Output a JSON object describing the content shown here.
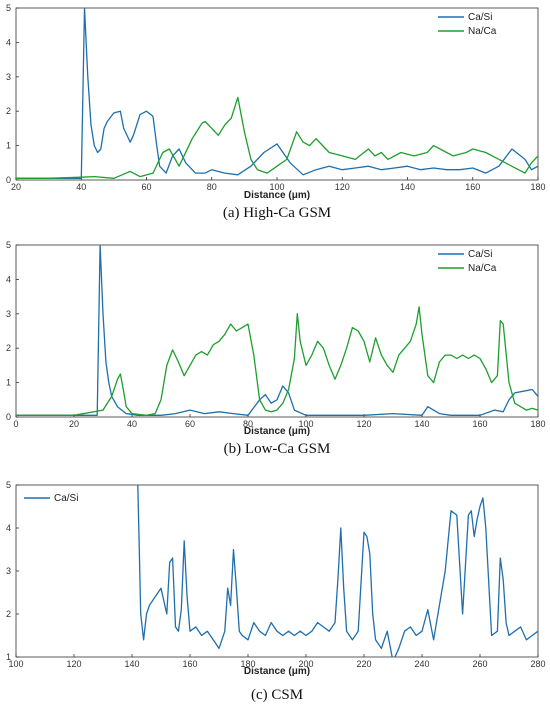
{
  "colors": {
    "ca_si": "#1f6fad",
    "na_ca": "#1e9e2e"
  },
  "chart_data": [
    {
      "type": "line",
      "caption": "(a) High-Ca GSM",
      "xlabel": "Distance (μm)",
      "ylabel": "",
      "xlim": [
        20,
        180
      ],
      "ylim": [
        0,
        5
      ],
      "xticks": [
        20,
        40,
        60,
        80,
        100,
        120,
        140,
        160,
        180
      ],
      "yticks": [
        0,
        1,
        2,
        3,
        4,
        5
      ],
      "legend_position": "top-right",
      "series": [
        {
          "name": "Ca/Si",
          "color": "#1f6fad",
          "x": [
            20,
            30,
            40,
            41,
            42,
            43,
            44,
            45,
            46,
            47,
            48,
            50,
            52,
            53,
            55,
            56,
            58,
            60,
            62,
            63,
            64,
            66,
            68,
            70,
            72,
            75,
            78,
            80,
            84,
            88,
            92,
            96,
            100,
            104,
            108,
            112,
            116,
            120,
            124,
            128,
            132,
            136,
            140,
            144,
            148,
            152,
            156,
            160,
            164,
            168,
            172,
            176,
            178,
            180
          ],
          "y": [
            0.05,
            0.05,
            0.05,
            5.0,
            3.0,
            1.6,
            1.0,
            0.8,
            0.9,
            1.5,
            1.7,
            1.95,
            2.0,
            1.5,
            1.1,
            1.3,
            1.9,
            2.0,
            1.85,
            1.1,
            0.4,
            0.2,
            0.7,
            0.9,
            0.5,
            0.2,
            0.2,
            0.3,
            0.2,
            0.15,
            0.4,
            0.8,
            1.05,
            0.5,
            0.15,
            0.3,
            0.4,
            0.3,
            0.35,
            0.4,
            0.3,
            0.35,
            0.4,
            0.3,
            0.35,
            0.3,
            0.3,
            0.35,
            0.2,
            0.4,
            0.9,
            0.6,
            0.3,
            0.4
          ]
        },
        {
          "name": "Na/Ca",
          "color": "#1e9e2e",
          "x": [
            20,
            30,
            40,
            44,
            50,
            55,
            58,
            62,
            65,
            67,
            70,
            74,
            77,
            78,
            80,
            82,
            84,
            86,
            88,
            90,
            92,
            94,
            97,
            100,
            103,
            106,
            108,
            110,
            112,
            116,
            120,
            124,
            128,
            130,
            132,
            134,
            138,
            142,
            146,
            148,
            150,
            154,
            158,
            160,
            164,
            166,
            170,
            174,
            176,
            178,
            180
          ],
          "y": [
            0.05,
            0.05,
            0.08,
            0.1,
            0.05,
            0.25,
            0.1,
            0.2,
            0.8,
            0.9,
            0.4,
            1.2,
            1.65,
            1.7,
            1.5,
            1.3,
            1.6,
            1.8,
            2.4,
            1.4,
            0.6,
            0.3,
            0.2,
            0.4,
            0.6,
            1.4,
            1.1,
            1.0,
            1.2,
            0.8,
            0.7,
            0.6,
            0.9,
            0.7,
            0.8,
            0.6,
            0.8,
            0.7,
            0.8,
            1.0,
            0.9,
            0.7,
            0.8,
            0.9,
            0.8,
            0.7,
            0.5,
            0.3,
            0.2,
            0.5,
            0.7
          ]
        }
      ]
    },
    {
      "type": "line",
      "caption": "(b) Low-Ca GSM",
      "xlabel": "Distance (μm)",
      "ylabel": "",
      "xlim": [
        0,
        180
      ],
      "ylim": [
        0,
        5
      ],
      "xticks": [
        0,
        20,
        40,
        60,
        80,
        100,
        120,
        140,
        160,
        180
      ],
      "yticks": [
        0,
        1,
        2,
        3,
        4,
        5
      ],
      "legend_position": "top-right",
      "series": [
        {
          "name": "Ca/Si",
          "color": "#1f6fad",
          "x": [
            0,
            10,
            20,
            28,
            29,
            30,
            31,
            32,
            33,
            35,
            38,
            42,
            46,
            50,
            55,
            60,
            65,
            70,
            75,
            80,
            84,
            86,
            88,
            90,
            92,
            94,
            96,
            100,
            110,
            120,
            130,
            140,
            142,
            146,
            150,
            160,
            165,
            168,
            170,
            172,
            175,
            178,
            180
          ],
          "y": [
            0.05,
            0.05,
            0.05,
            0.05,
            5.0,
            3.0,
            1.6,
            1.0,
            0.6,
            0.3,
            0.1,
            0.05,
            0.05,
            0.05,
            0.1,
            0.2,
            0.1,
            0.15,
            0.1,
            0.05,
            0.5,
            0.65,
            0.4,
            0.5,
            0.9,
            0.7,
            0.2,
            0.05,
            0.05,
            0.05,
            0.1,
            0.05,
            0.3,
            0.1,
            0.05,
            0.05,
            0.2,
            0.15,
            0.5,
            0.7,
            0.75,
            0.8,
            0.6
          ]
        },
        {
          "name": "Na/Ca",
          "color": "#1e9e2e",
          "x": [
            0,
            10,
            20,
            30,
            33,
            35,
            36,
            37,
            38,
            40,
            45,
            48,
            50,
            52,
            54,
            56,
            58,
            60,
            62,
            64,
            66,
            68,
            70,
            72,
            74,
            76,
            78,
            80,
            82,
            84,
            86,
            88,
            90,
            92,
            94,
            96,
            97,
            98,
            100,
            102,
            104,
            106,
            108,
            110,
            112,
            114,
            116,
            118,
            120,
            122,
            124,
            126,
            128,
            130,
            132,
            134,
            136,
            138,
            139,
            140,
            142,
            144,
            146,
            148,
            150,
            152,
            154,
            156,
            158,
            160,
            162,
            164,
            166,
            167,
            168,
            170,
            172,
            174,
            176,
            178,
            180
          ],
          "y": [
            0.05,
            0.05,
            0.05,
            0.2,
            0.6,
            1.1,
            1.25,
            0.8,
            0.3,
            0.1,
            0.05,
            0.1,
            0.5,
            1.5,
            1.95,
            1.6,
            1.2,
            1.5,
            1.8,
            1.9,
            1.8,
            2.1,
            2.2,
            2.4,
            2.7,
            2.5,
            2.6,
            2.7,
            1.8,
            0.5,
            0.2,
            0.15,
            0.2,
            0.4,
            0.8,
            1.7,
            3.0,
            2.2,
            1.5,
            1.8,
            2.2,
            2.0,
            1.5,
            1.1,
            1.5,
            2.0,
            2.6,
            2.5,
            2.2,
            1.6,
            2.3,
            1.8,
            1.5,
            1.3,
            1.8,
            2.0,
            2.2,
            2.7,
            3.2,
            2.4,
            1.2,
            1.0,
            1.6,
            1.8,
            1.8,
            1.7,
            1.8,
            1.7,
            1.8,
            1.7,
            1.4,
            1.0,
            1.2,
            2.8,
            2.7,
            1.0,
            0.4,
            0.3,
            0.2,
            0.25,
            0.2
          ]
        }
      ]
    },
    {
      "type": "line",
      "caption": "(c) CSM",
      "xlabel": "Distance (μm)",
      "ylabel": "",
      "xlim": [
        100,
        280
      ],
      "ylim": [
        1,
        5
      ],
      "xticks": [
        100,
        120,
        140,
        160,
        180,
        200,
        220,
        240,
        260,
        280
      ],
      "yticks": [
        1,
        2,
        3,
        4,
        5
      ],
      "legend_position": "top-left",
      "series": [
        {
          "name": "Ca/Si",
          "color": "#1f6fad",
          "x": [
            142,
            142.5,
            143,
            144,
            145,
            146,
            148,
            150,
            152,
            153,
            154,
            155,
            156,
            157,
            158,
            159,
            160,
            162,
            164,
            166,
            168,
            170,
            172,
            173,
            174,
            175,
            176,
            177,
            178,
            180,
            182,
            184,
            186,
            188,
            190,
            192,
            194,
            196,
            198,
            200,
            202,
            204,
            206,
            208,
            210,
            211,
            212,
            213,
            214,
            216,
            218,
            220,
            221,
            222,
            223,
            224,
            226,
            228,
            230,
            232,
            234,
            236,
            238,
            240,
            242,
            244,
            246,
            248,
            250,
            252,
            254,
            256,
            257,
            258,
            259,
            260,
            261,
            262,
            264,
            266,
            267,
            268,
            269,
            270,
            272,
            274,
            276,
            278,
            280
          ],
          "y": [
            5.0,
            3.5,
            2.0,
            1.4,
            2.0,
            2.2,
            2.4,
            2.6,
            2.0,
            3.2,
            3.3,
            1.7,
            1.6,
            2.1,
            3.7,
            2.4,
            1.6,
            1.7,
            1.5,
            1.6,
            1.4,
            1.2,
            1.6,
            2.6,
            2.2,
            3.5,
            2.6,
            1.6,
            1.5,
            1.4,
            1.8,
            1.6,
            1.5,
            1.8,
            1.6,
            1.5,
            1.6,
            1.5,
            1.6,
            1.5,
            1.6,
            1.8,
            1.7,
            1.6,
            1.8,
            2.8,
            4.0,
            2.6,
            1.6,
            1.4,
            1.6,
            3.9,
            3.8,
            3.4,
            2.0,
            1.4,
            1.2,
            1.6,
            0.9,
            1.2,
            1.6,
            1.7,
            1.5,
            1.6,
            2.1,
            1.4,
            2.2,
            3.0,
            4.4,
            4.3,
            2.0,
            4.3,
            4.4,
            3.8,
            4.2,
            4.5,
            4.7,
            4.0,
            1.5,
            1.6,
            3.3,
            2.8,
            1.8,
            1.5,
            1.6,
            1.7,
            1.4,
            1.5,
            1.6
          ]
        }
      ]
    }
  ]
}
